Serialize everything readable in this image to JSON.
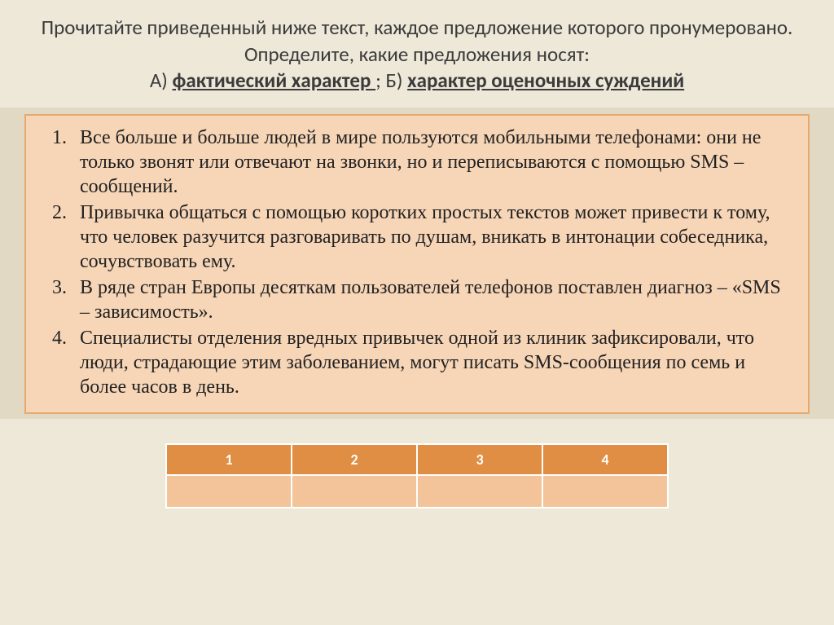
{
  "header": {
    "line1": "Прочитайте приведенный ниже текст, каждое предложение которого пронумеровано.  Определите, какие предложения  носят:",
    "optA_label": "А) ",
    "optA_text": "фактический характер ",
    "sep": ";    ",
    "optB_label": "Б) ",
    "optB_text": "характер оценочных суждений"
  },
  "statements": [
    "Все больше и больше людей в мире пользуются мобильными телефонами: они не только звонят или отвечают на звонки, но и переписываются с помощью SMS – сообщений.",
    "Привычка общаться с помощью коротких простых текстов может привести к тому, что человек разучится разговаривать по душам, вникать в интонации собеседника, сочувствовать ему.",
    "В ряде стран Европы десяткам пользователей телефонов поставлен диагноз – «SMS – зависимость».",
    "Специалисты отделения вредных привычек одной из клиник зафиксировали, что люди, страдающие этим заболеванием, могут писать SMS-сообщения по семь и более часов в день."
  ],
  "table": {
    "headers": [
      "1",
      "2",
      "3",
      "4"
    ],
    "answers": [
      "",
      "",
      "",
      ""
    ],
    "header_bg": "#e08e43",
    "answer_bg": "#f3c39a",
    "border_color": "#ffffff"
  },
  "colors": {
    "slide_bg": "#eee8d9",
    "band_bg": "#e1d9c3",
    "box_bg": "#f7d5b7",
    "box_border": "#e6a971",
    "header_text": "#3b3b3b",
    "body_text": "#222222"
  }
}
